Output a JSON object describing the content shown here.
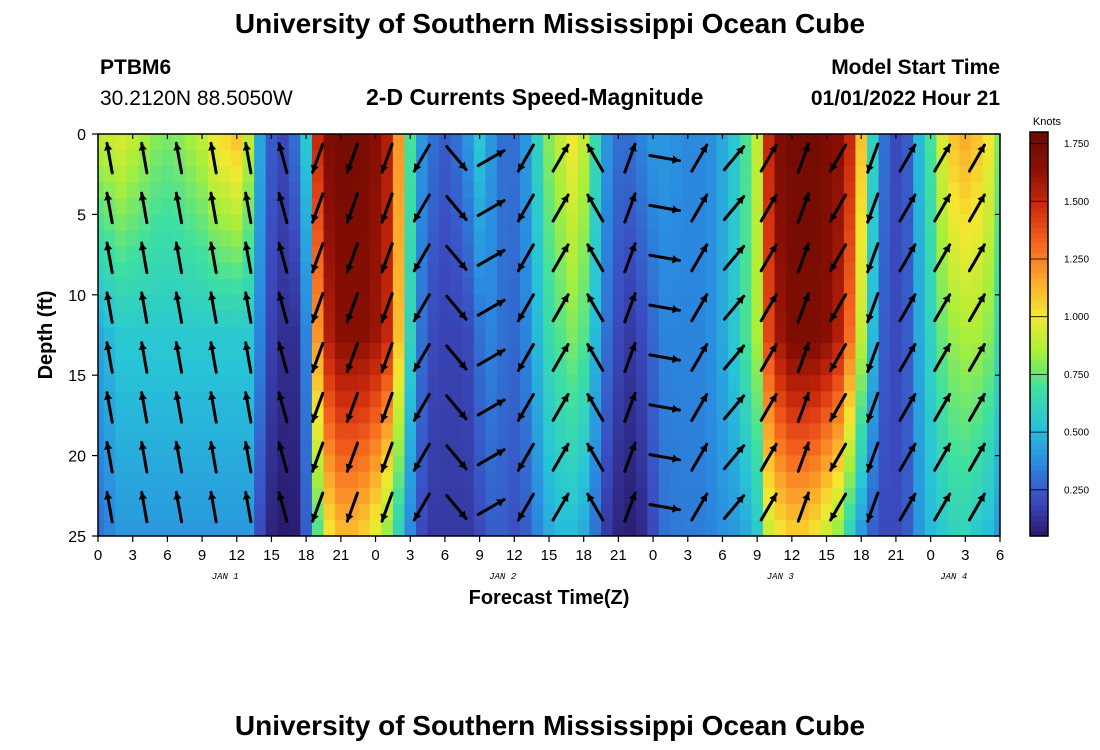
{
  "header": {
    "title": "University of Southern Mississippi Ocean Cube",
    "station_id": "PTBM6",
    "coordinates": "30.2120N  88.5050W",
    "subtitle": "2-D Currents Speed-Magnitude",
    "model_start_label": "Model Start Time",
    "model_start_value": "01/01/2022 Hour 21"
  },
  "footer": {
    "title": "University of Southern Mississippi Ocean Cube"
  },
  "chart_data": {
    "type": "heatmap",
    "title": "2-D Currents Speed-Magnitude",
    "xlabel": "Forecast Time(Z)",
    "ylabel": "Depth (ft)",
    "x_hours": [
      0,
      78
    ],
    "x_tick_labels": [
      "0",
      "3",
      "6",
      "9",
      "12",
      "15",
      "18",
      "21",
      "0",
      "3",
      "6",
      "9",
      "12",
      "15",
      "18",
      "21",
      "0",
      "3",
      "6",
      "9",
      "12",
      "15",
      "18",
      "21",
      "0",
      "3",
      "6"
    ],
    "day_labels": [
      {
        "label": "JAN 1",
        "hour": 11
      },
      {
        "label": "JAN 2",
        "hour": 35
      },
      {
        "label": "JAN 3",
        "hour": 59
      },
      {
        "label": "JAN 4",
        "hour": 74
      }
    ],
    "ylim": [
      0,
      25
    ],
    "y_ticks": [
      0,
      5,
      10,
      15,
      20,
      25
    ],
    "colorbar": {
      "unit": "Knots",
      "range": [
        0.05,
        1.8
      ],
      "ticks": [
        "1.750",
        "1.500",
        "1.250",
        "1.000",
        "0.750",
        "0.500",
        "0.250"
      ],
      "tick_values": [
        1.75,
        1.5,
        1.25,
        1.0,
        0.75,
        0.5,
        0.25
      ]
    },
    "time_hours": [
      0,
      1,
      2,
      3,
      4,
      5,
      6,
      7,
      8,
      9,
      10,
      11,
      12,
      13,
      14,
      15,
      16,
      17,
      18,
      19,
      20,
      21,
      22,
      23,
      24,
      25,
      26,
      27,
      28,
      29,
      30,
      31,
      32,
      33,
      34,
      35,
      36,
      37,
      38,
      39,
      40,
      41,
      42,
      43,
      44,
      45,
      46,
      47,
      48,
      49,
      50,
      51,
      52,
      53,
      54,
      55,
      56,
      57,
      58,
      59,
      60,
      61,
      62,
      63,
      64,
      65,
      66,
      67,
      68,
      69,
      70,
      71,
      72,
      73,
      74,
      75,
      76,
      77,
      78
    ],
    "depth_ft": [
      0,
      12.5,
      25
    ],
    "speed_surface": [
      0.9,
      0.92,
      0.95,
      0.9,
      0.85,
      0.8,
      0.78,
      0.8,
      0.85,
      0.9,
      1.0,
      1.05,
      1.1,
      0.9,
      0.45,
      0.25,
      0.2,
      0.3,
      0.55,
      1.5,
      1.7,
      1.75,
      1.75,
      1.72,
      1.65,
      1.55,
      1.2,
      0.7,
      0.4,
      0.3,
      0.25,
      0.3,
      0.4,
      0.55,
      0.4,
      0.3,
      0.3,
      0.4,
      0.6,
      0.8,
      0.9,
      1.0,
      0.9,
      0.65,
      0.4,
      0.3,
      0.3,
      0.35,
      0.4,
      0.4,
      0.38,
      0.36,
      0.36,
      0.38,
      0.45,
      0.55,
      0.7,
      0.9,
      1.5,
      1.7,
      1.75,
      1.75,
      1.75,
      1.7,
      1.65,
      1.5,
      1.1,
      0.6,
      0.3,
      0.2,
      0.25,
      0.5,
      0.7,
      0.95,
      1.1,
      1.15,
      1.1,
      1.0,
      0.8
    ],
    "speed_mid": [
      0.45,
      0.5,
      0.55,
      0.55,
      0.55,
      0.55,
      0.55,
      0.55,
      0.55,
      0.55,
      0.55,
      0.55,
      0.55,
      0.55,
      0.35,
      0.18,
      0.12,
      0.12,
      0.35,
      1.2,
      1.55,
      1.65,
      1.65,
      1.65,
      1.6,
      1.5,
      1.1,
      0.6,
      0.3,
      0.2,
      0.18,
      0.18,
      0.2,
      0.3,
      0.35,
      0.3,
      0.28,
      0.35,
      0.5,
      0.65,
      0.72,
      0.78,
      0.72,
      0.5,
      0.3,
      0.2,
      0.15,
      0.2,
      0.28,
      0.35,
      0.35,
      0.35,
      0.35,
      0.38,
      0.45,
      0.55,
      0.7,
      0.85,
      1.4,
      1.6,
      1.7,
      1.7,
      1.7,
      1.65,
      1.55,
      1.3,
      0.9,
      0.5,
      0.25,
      0.2,
      0.25,
      0.45,
      0.6,
      0.75,
      0.82,
      0.85,
      0.85,
      0.8,
      0.65
    ],
    "speed_bottom": [
      0.3,
      0.35,
      0.4,
      0.4,
      0.4,
      0.4,
      0.4,
      0.4,
      0.4,
      0.4,
      0.4,
      0.4,
      0.4,
      0.4,
      0.2,
      0.08,
      0.05,
      0.06,
      0.25,
      0.7,
      1.0,
      1.1,
      1.1,
      1.05,
      0.95,
      0.8,
      0.6,
      0.35,
      0.2,
      0.15,
      0.15,
      0.15,
      0.15,
      0.2,
      0.25,
      0.25,
      0.22,
      0.25,
      0.35,
      0.45,
      0.5,
      0.5,
      0.45,
      0.3,
      0.15,
      0.08,
      0.06,
      0.1,
      0.2,
      0.3,
      0.32,
      0.33,
      0.33,
      0.35,
      0.38,
      0.4,
      0.45,
      0.55,
      0.9,
      1.0,
      1.05,
      1.05,
      1.0,
      0.9,
      0.8,
      0.6,
      0.4,
      0.25,
      0.2,
      0.2,
      0.25,
      0.4,
      0.5,
      0.55,
      0.6,
      0.6,
      0.55,
      0.5,
      0.4
    ],
    "vector_times": [
      1,
      4,
      7,
      10,
      13,
      16,
      19,
      22,
      25,
      28,
      31,
      34,
      37,
      40,
      43,
      46,
      49,
      52,
      55,
      58,
      61,
      64,
      67,
      70,
      73,
      76
    ],
    "vector_dir_deg": [
      350,
      350,
      350,
      350,
      350,
      345,
      200,
      200,
      200,
      210,
      140,
      60,
      210,
      30,
      330,
      20,
      100,
      30,
      40,
      30,
      20,
      210,
      200,
      30,
      30,
      30
    ],
    "colors": {
      "arrow": "#000000",
      "colormap": [
        "#2a1a6e",
        "#3b4cc0",
        "#2a8ce0",
        "#28c4d8",
        "#3fe0a0",
        "#a8ef3a",
        "#f5e830",
        "#fca52c",
        "#f5621e",
        "#cc2a0c",
        "#8a0f04",
        "#6a0a02"
      ]
    }
  }
}
